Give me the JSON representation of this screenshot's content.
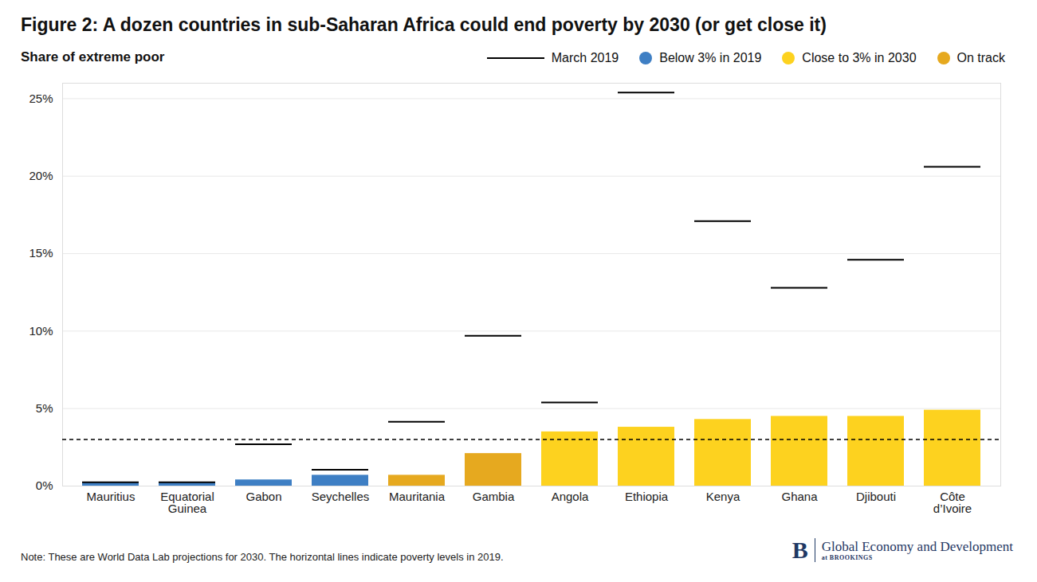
{
  "chart_data": {
    "type": "bar",
    "title": "Figure 2: A dozen countries in sub-Saharan Africa could end poverty by 2030 (or get close it)",
    "subtitle": "Share of extreme poor",
    "categories": [
      "Mauritius",
      "Equatorial Guinea",
      "Gabon",
      "Seychelles",
      "Mauritania",
      "Gambia",
      "Angola",
      "Ethiopia",
      "Kenya",
      "Ghana",
      "Djibouti",
      "Côte d’Ivoire"
    ],
    "series": [
      {
        "type": "bar",
        "values": [
          0.2,
          0.2,
          0.4,
          0.7,
          0.7,
          2.1,
          3.5,
          3.8,
          4.3,
          4.5,
          4.5,
          4.9
        ],
        "colors": [
          "#3e7fc4",
          "#3e7fc4",
          "#3e7fc4",
          "#3e7fc4",
          "#e6a91f",
          "#e6a91f",
          "#fdd21f",
          "#fdd21f",
          "#fdd21f",
          "#fdd21f",
          "#fdd21f",
          "#fdd21f"
        ]
      },
      {
        "name": "March 2019",
        "type": "line",
        "line_style": "solid",
        "color": "#000000",
        "values": [
          0.25,
          0.25,
          2.7,
          1.05,
          4.15,
          9.7,
          5.4,
          25.4,
          17.1,
          12.8,
          14.6,
          20.6
        ]
      }
    ],
    "color_groups": [
      {
        "name": "Below 3% in 2019",
        "color": "#3e7fc4"
      },
      {
        "name": "Close to 3% in 2030",
        "color": "#fdd21f"
      },
      {
        "name": "On track",
        "color": "#e6a91f"
      }
    ],
    "reference_line": {
      "value": 3,
      "line_style": "dashed"
    },
    "ylim": [
      0,
      26
    ],
    "yticks": [
      {
        "value": 0,
        "label": "0%"
      },
      {
        "value": 5,
        "label": "5%"
      },
      {
        "value": 10,
        "label": "10%"
      },
      {
        "value": 15,
        "label": "15%"
      },
      {
        "value": 20,
        "label": "20%"
      },
      {
        "value": 25,
        "label": "25%"
      }
    ],
    "grid": true,
    "note": "Note: These are World Data Lab projections for 2030. The horizontal lines indicate poverty levels in 2019.",
    "branding": [
      "B",
      "Global Economy and Development",
      "at BROOKINGS"
    ]
  }
}
